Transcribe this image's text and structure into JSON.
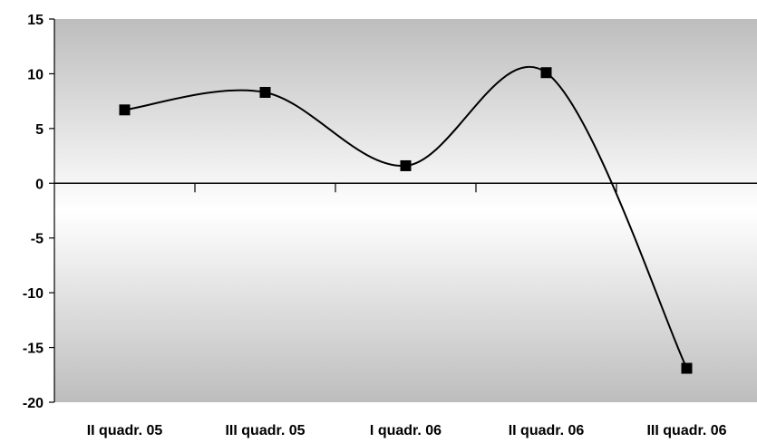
{
  "chart_data": {
    "type": "line",
    "smooth": true,
    "categories": [
      "II quadr. 05",
      "III quadr. 05",
      "I quadr. 06",
      "II quadr. 06",
      "III quadr. 06"
    ],
    "series": [
      {
        "values": [
          6.7,
          8.3,
          1.6,
          10.1,
          -16.9
        ]
      }
    ],
    "ylim": [
      -20,
      15
    ],
    "yticks": [
      "15",
      "10",
      "5",
      "0",
      "-5",
      "-10",
      "-15",
      "-20"
    ],
    "grid": false,
    "marker": "square",
    "colors": {
      "line": "#000000",
      "marker": "#000000",
      "plot_bg_edge": "#bdbdbd",
      "plot_bg_center": "#ffffff"
    }
  }
}
